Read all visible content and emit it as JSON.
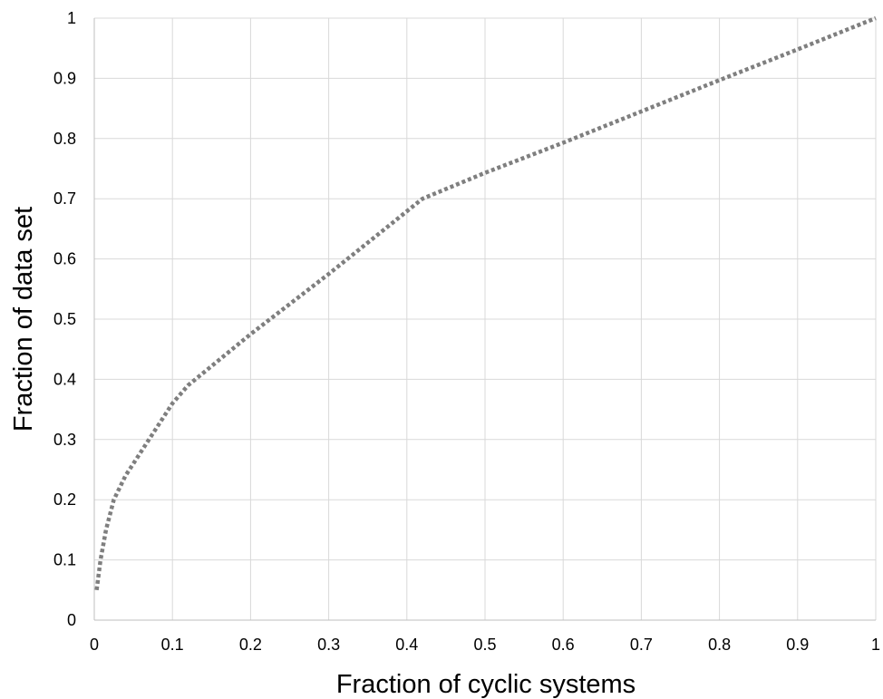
{
  "chart_data": {
    "type": "line",
    "title": "",
    "xlabel": "Fraction of cyclic systems",
    "ylabel": "Fraction of  data set",
    "xlim": [
      0,
      1
    ],
    "ylim": [
      0,
      1
    ],
    "x_ticks": [
      0,
      0.1,
      0.2,
      0.3,
      0.4,
      0.5,
      0.6,
      0.7,
      0.8,
      0.9,
      1
    ],
    "y_ticks": [
      0,
      0.1,
      0.2,
      0.3,
      0.4,
      0.5,
      0.6,
      0.7,
      0.8,
      0.9,
      1
    ],
    "x_tick_labels": [
      "0",
      "0.1",
      "0.2",
      "0.3",
      "0.4",
      "0.5",
      "0.6",
      "0.7",
      "0.8",
      "0.9",
      "1"
    ],
    "y_tick_labels": [
      "0",
      "0.1",
      "0.2",
      "0.3",
      "0.4",
      "0.5",
      "0.6",
      "0.7",
      "0.8",
      "0.9",
      "1"
    ],
    "grid": true,
    "legend": "none",
    "series": [
      {
        "color": "#7f7f7f",
        "line_style": "dotted",
        "x": [
          0.003,
          0.008,
          0.015,
          0.025,
          0.04,
          0.055,
          0.075,
          0.1,
          0.12,
          0.2,
          0.3,
          0.42,
          0.5,
          0.6,
          0.7,
          0.8,
          0.9,
          1.0
        ],
        "y": [
          0.05,
          0.1,
          0.15,
          0.2,
          0.24,
          0.27,
          0.31,
          0.36,
          0.39,
          0.475,
          0.575,
          0.7,
          0.743,
          0.793,
          0.845,
          0.897,
          0.948,
          1.0
        ]
      }
    ]
  }
}
